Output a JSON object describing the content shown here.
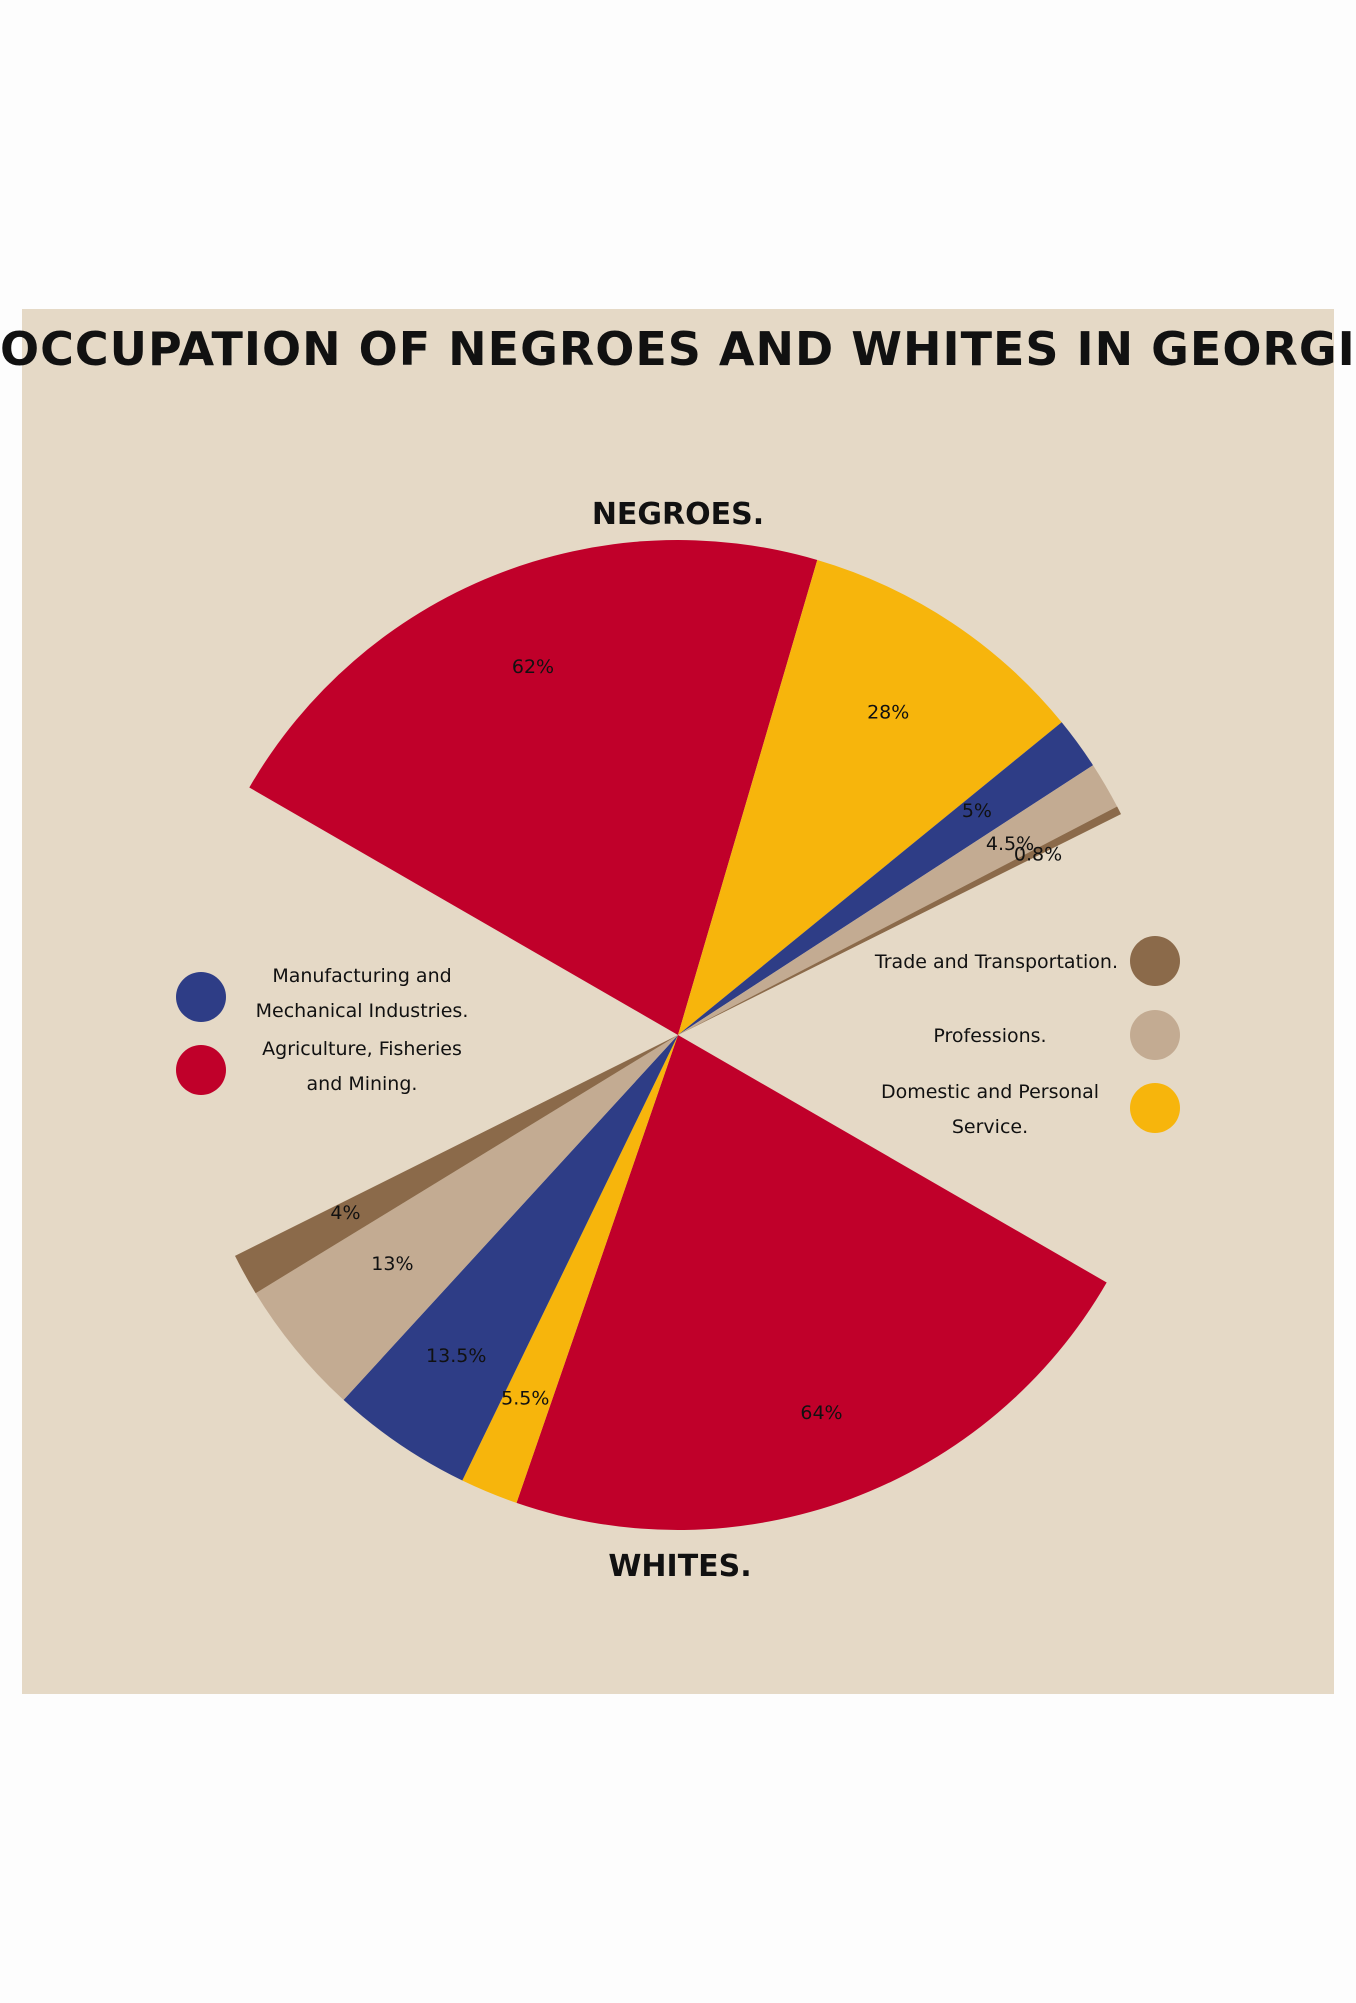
{
  "chart_data": {
    "type": "pie",
    "title": "OCCUPATION OF NEGROES AND WHITES IN GEORGIA.",
    "categories": [
      "Agriculture, Fisheries and Mining.",
      "Domestic and Personal Service.",
      "Manufacturing and Mechanical Industries.",
      "Professions.",
      "Trade and Transportation."
    ],
    "colors": {
      "Agriculture, Fisheries and Mining.": "#c0002a",
      "Domestic and Personal Service.": "#f7b50c",
      "Manufacturing and Mechanical Industries.": "#2e3d86",
      "Professions.": "#c3ab92",
      "Trade and Transportation.": "#8b6a4a"
    },
    "series": [
      {
        "name": "NEGROES.",
        "values": [
          62,
          28,
          5,
          4.5,
          0.8
        ],
        "labels": [
          "62%",
          "28%",
          "5%",
          "4.5%",
          "0.8%"
        ]
      },
      {
        "name": "WHITES.",
        "values": [
          64,
          5.5,
          13.5,
          13,
          4
        ],
        "labels": [
          "64%",
          "5.5%",
          "13.5%",
          "13%",
          "4%"
        ]
      }
    ],
    "legend": {
      "left": [
        {
          "category": "Manufacturing and Mechanical Industries.",
          "lines": [
            "Manufacturing and",
            "Mechanical Industries."
          ],
          "icon": "blue-circle"
        },
        {
          "category": "Agriculture, Fisheries and Mining.",
          "lines": [
            "Agriculture, Fisheries",
            "and Mining."
          ],
          "icon": "red-circle"
        }
      ],
      "right": [
        {
          "category": "Trade and Transportation.",
          "lines": [
            "Trade and Transportation."
          ],
          "icon": "brown-circle"
        },
        {
          "category": "Professions.",
          "lines": [
            "Professions."
          ],
          "icon": "tan-circle"
        },
        {
          "category": "Domestic and Personal Service.",
          "lines": [
            "Domestic and Personal",
            "Service."
          ],
          "icon": "gold-circle"
        }
      ]
    },
    "background": "#e5d9c6"
  }
}
